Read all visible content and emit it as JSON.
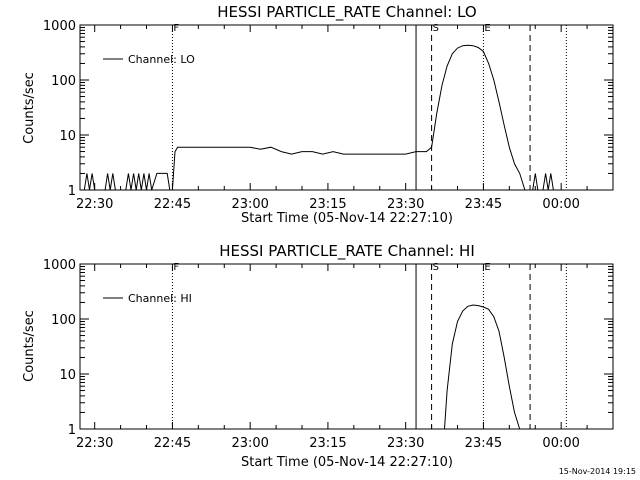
{
  "chart_data": [
    {
      "type": "line",
      "title": "HESSI PARTICLE_RATE Channel: LO",
      "xlabel": "Start Time (05-Nov-14 22:27:10)",
      "ylabel": "Counts/sec",
      "yscale": "log",
      "xlim": [
        "22:27:10",
        "00:10"
      ],
      "ylim": [
        1,
        1000
      ],
      "x_tick_labels": [
        "22:30",
        "22:45",
        "23:00",
        "23:15",
        "23:30",
        "23:45",
        "00:00"
      ],
      "y_tick_labels": [
        "1",
        "10",
        "100",
        "1000"
      ],
      "legend": {
        "placement": "top-left",
        "entries": [
          "Channel: LO"
        ]
      },
      "grid": false,
      "vertical_markers": [
        {
          "label": "F",
          "time": "22:45",
          "style": "dotted"
        },
        {
          "label": "",
          "time": "23:32",
          "style": "solid"
        },
        {
          "label": "S",
          "time": "23:35",
          "style": "dashed"
        },
        {
          "label": "E",
          "time": "23:45",
          "style": "dotted"
        },
        {
          "label": "",
          "time": "23:54",
          "style": "dashed"
        },
        {
          "label": "",
          "time": "00:01",
          "style": "dotted"
        }
      ],
      "series": [
        {
          "name": "Channel: LO",
          "x": [
            "22:27:10",
            "22:28",
            "22:28:30",
            "22:29",
            "22:29:30",
            "22:30",
            "22:32",
            "22:32:30",
            "22:33",
            "22:33:30",
            "22:34",
            "22:36",
            "22:36:30",
            "22:37",
            "22:37:30",
            "22:38",
            "22:38:30",
            "22:39",
            "22:39:30",
            "22:40",
            "22:40:30",
            "22:41",
            "22:42",
            "22:43",
            "22:44",
            "22:44:30",
            "22:45",
            "22:45:30",
            "22:46",
            "22:48",
            "22:50",
            "22:52",
            "22:54",
            "22:56",
            "22:58",
            "23:00",
            "23:02",
            "23:04",
            "23:06",
            "23:08",
            "23:10",
            "23:12",
            "23:14",
            "23:16",
            "23:18",
            "23:20",
            "23:22",
            "23:24",
            "23:26",
            "23:28",
            "23:30",
            "23:32",
            "23:34",
            "23:35",
            "23:36",
            "23:37",
            "23:38",
            "23:39",
            "23:40",
            "23:41",
            "23:42",
            "23:43",
            "23:44",
            "23:45",
            "23:46",
            "23:47",
            "23:48",
            "23:49",
            "23:50",
            "23:51",
            "23:52",
            "23:53",
            "23:54",
            "23:54:30",
            "23:55",
            "23:55:30",
            "23:56",
            "23:56:30",
            "23:57",
            "23:57:30",
            "23:58",
            "23:58:30"
          ],
          "y": [
            1,
            1,
            2,
            1,
            2,
            1,
            1,
            2,
            1,
            2,
            1,
            1,
            2,
            1,
            2,
            1,
            2,
            1,
            2,
            1,
            2,
            1,
            2,
            2,
            2,
            1,
            1,
            5,
            6,
            6,
            6,
            6,
            6,
            6,
            6,
            6,
            5.5,
            6,
            5,
            4.5,
            5,
            5,
            4.5,
            5,
            4.5,
            4.5,
            4.5,
            4.5,
            4.5,
            4.5,
            4.5,
            5,
            5,
            6,
            25,
            80,
            180,
            300,
            380,
            420,
            430,
            420,
            390,
            330,
            200,
            100,
            40,
            15,
            6,
            3,
            2,
            1,
            1,
            1,
            2,
            1,
            1,
            1,
            2,
            1,
            2,
            1
          ]
        }
      ]
    },
    {
      "type": "line",
      "title": "HESSI PARTICLE_RATE Channel: HI",
      "xlabel": "Start Time (05-Nov-14 22:27:10)",
      "ylabel": "Counts/sec",
      "yscale": "log",
      "xlim": [
        "22:27:10",
        "00:10"
      ],
      "ylim": [
        1,
        1000
      ],
      "x_tick_labels": [
        "22:30",
        "22:45",
        "23:00",
        "23:15",
        "23:30",
        "23:45",
        "00:00"
      ],
      "y_tick_labels": [
        "1",
        "10",
        "100",
        "1000"
      ],
      "legend": {
        "placement": "top-left",
        "entries": [
          "Channel: HI"
        ]
      },
      "grid": false,
      "vertical_markers": [
        {
          "label": "F",
          "time": "22:45",
          "style": "dotted"
        },
        {
          "label": "",
          "time": "23:32",
          "style": "solid"
        },
        {
          "label": "S",
          "time": "23:35",
          "style": "dashed"
        },
        {
          "label": "E",
          "time": "23:45",
          "style": "dotted"
        },
        {
          "label": "",
          "time": "23:54",
          "style": "dashed"
        },
        {
          "label": "",
          "time": "00:01",
          "style": "dotted"
        }
      ],
      "series": [
        {
          "name": "Channel: HI",
          "x": [
            "23:37:30",
            "23:38",
            "23:39",
            "23:40",
            "23:41",
            "23:42",
            "23:43",
            "23:44",
            "23:45",
            "23:46",
            "23:47",
            "23:48",
            "23:49",
            "23:50",
            "23:51",
            "23:52"
          ],
          "y": [
            1,
            5,
            35,
            90,
            140,
            170,
            180,
            175,
            165,
            150,
            110,
            60,
            20,
            6,
            2,
            1
          ]
        }
      ]
    }
  ],
  "footer": {
    "timestamp": "15-Nov-2014 19:15"
  }
}
